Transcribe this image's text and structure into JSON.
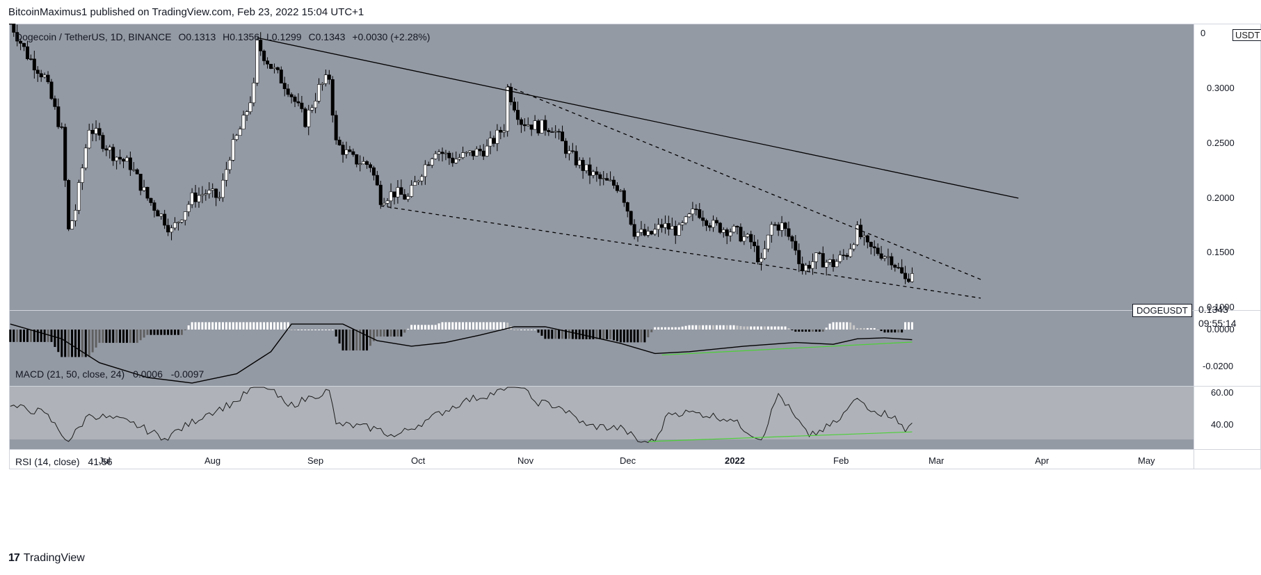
{
  "header": {
    "publisher_line": "BitcoinMaximus1 published on TradingView.com, Feb 23, 2022 15:04 UTC+1"
  },
  "main_legend": {
    "symbol": "Dogecoin / TetherUS, 1D, BINANCE",
    "open_label": "O",
    "open": "0.1313",
    "high_label": "H",
    "high": "0.1356",
    "low_label": "L",
    "low": "0.1299",
    "close_label": "C",
    "close": "0.1343",
    "change": "+0.0030 (+2.28%)"
  },
  "currency_badge": "USDT",
  "price_axis_ticks": [
    "0.3000",
    "0.2500",
    "0.2000",
    "0.1500",
    "0.1000"
  ],
  "price_axis_top_partial": "0",
  "last_price": {
    "symbol": "DOGEUSDT",
    "value": "0.1343",
    "countdown": "09:55:14"
  },
  "macd": {
    "label": "MACD (21, 50, close, 24)",
    "value1": "0.0006",
    "value2": "-0.0097",
    "ticks": [
      "0.0000",
      "-0.0200"
    ]
  },
  "rsi": {
    "label": "RSI (14, close)",
    "value": "41.56",
    "ticks": [
      "60.00",
      "40.00"
    ]
  },
  "time_axis": [
    "Jul",
    "Aug",
    "Sep",
    "Oct",
    "Nov",
    "Dec",
    "2022",
    "Feb",
    "Mar",
    "Apr",
    "May"
  ],
  "footer": {
    "brand": "TradingView",
    "logo": "17"
  },
  "colors": {
    "panel_bg": "#949aa4",
    "rsi_band_bg": "#afb3b9",
    "candle_up": "#ffffff",
    "candle_down": "#000000",
    "trendline": "#000000",
    "divergence": "#4cd137"
  },
  "chart_data": {
    "type": "candlestick",
    "symbol": "DOGEUSDT",
    "timeframe": "1D",
    "price_range": [
      0.08,
      0.35
    ],
    "price_path": [
      [
        "2021-06-05",
        0.36
      ],
      [
        "2021-06-10",
        0.33
      ],
      [
        "2021-06-15",
        0.31
      ],
      [
        "2021-06-20",
        0.26
      ],
      [
        "2021-06-22",
        0.17
      ],
      [
        "2021-06-24",
        0.19
      ],
      [
        "2021-06-28",
        0.265
      ],
      [
        "2021-07-05",
        0.24
      ],
      [
        "2021-07-10",
        0.23
      ],
      [
        "2021-07-15",
        0.2
      ],
      [
        "2021-07-20",
        0.18
      ],
      [
        "2021-07-22",
        0.17
      ],
      [
        "2021-07-28",
        0.2
      ],
      [
        "2021-08-01",
        0.205
      ],
      [
        "2021-08-05",
        0.2
      ],
      [
        "2021-08-08",
        0.24
      ],
      [
        "2021-08-12",
        0.27
      ],
      [
        "2021-08-15",
        0.3
      ],
      [
        "2021-08-16",
        0.34
      ],
      [
        "2021-08-20",
        0.32
      ],
      [
        "2021-08-25",
        0.3
      ],
      [
        "2021-08-30",
        0.27
      ],
      [
        "2021-09-03",
        0.3
      ],
      [
        "2021-09-06",
        0.31
      ],
      [
        "2021-09-08",
        0.25
      ],
      [
        "2021-09-13",
        0.235
      ],
      [
        "2021-09-18",
        0.23
      ],
      [
        "2021-09-21",
        0.2
      ],
      [
        "2021-09-25",
        0.205
      ],
      [
        "2021-09-29",
        0.2
      ],
      [
        "2021-10-03",
        0.225
      ],
      [
        "2021-10-07",
        0.245
      ],
      [
        "2021-10-12",
        0.235
      ],
      [
        "2021-10-17",
        0.24
      ],
      [
        "2021-10-22",
        0.245
      ],
      [
        "2021-10-27",
        0.265
      ],
      [
        "2021-10-28",
        0.3
      ],
      [
        "2021-11-01",
        0.27
      ],
      [
        "2021-11-06",
        0.265
      ],
      [
        "2021-11-10",
        0.265
      ],
      [
        "2021-11-15",
        0.24
      ],
      [
        "2021-11-20",
        0.225
      ],
      [
        "2021-11-25",
        0.215
      ],
      [
        "2021-11-30",
        0.21
      ],
      [
        "2021-12-04",
        0.17
      ],
      [
        "2021-12-08",
        0.165
      ],
      [
        "2021-12-12",
        0.175
      ],
      [
        "2021-12-17",
        0.17
      ],
      [
        "2021-12-22",
        0.19
      ],
      [
        "2021-12-27",
        0.175
      ],
      [
        "2022-01-02",
        0.17
      ],
      [
        "2022-01-07",
        0.16
      ],
      [
        "2022-01-10",
        0.14
      ],
      [
        "2022-01-13",
        0.175
      ],
      [
        "2022-01-16",
        0.175
      ],
      [
        "2022-01-20",
        0.155
      ],
      [
        "2022-01-22",
        0.135
      ],
      [
        "2022-01-26",
        0.145
      ],
      [
        "2022-01-31",
        0.14
      ],
      [
        "2022-02-04",
        0.15
      ],
      [
        "2022-02-07",
        0.17
      ],
      [
        "2022-02-10",
        0.155
      ],
      [
        "2022-02-14",
        0.15
      ],
      [
        "2022-02-17",
        0.145
      ],
      [
        "2022-02-21",
        0.125
      ],
      [
        "2022-02-23",
        0.1343
      ]
    ],
    "trendlines": [
      {
        "style": "solid",
        "from": [
          "2021-08-16",
          0.346
        ],
        "to": [
          "2022-03-26",
          0.2
        ]
      },
      {
        "style": "dashed",
        "from": [
          "2021-10-28",
          0.302
        ],
        "to": [
          "2022-03-15",
          0.126
        ]
      },
      {
        "style": "dashed",
        "from": [
          "2021-09-21",
          0.193
        ],
        "to": [
          "2022-03-15",
          0.109
        ]
      }
    ],
    "macd": {
      "params": "21, 50, close, 24",
      "ylim": [
        -0.0275,
        0.0018
      ],
      "line": [
        [
          "2021-06-05",
          0.003
        ],
        [
          "2021-06-20",
          -0.005
        ],
        [
          "2021-07-01",
          -0.018
        ],
        [
          "2021-07-15",
          -0.026
        ],
        [
          "2021-07-28",
          -0.029
        ],
        [
          "2021-08-10",
          -0.024
        ],
        [
          "2021-08-20",
          -0.012
        ],
        [
          "2021-08-26",
          0.003
        ],
        [
          "2021-09-10",
          0.003
        ],
        [
          "2021-09-20",
          -0.006
        ],
        [
          "2021-09-30",
          -0.009
        ],
        [
          "2021-10-10",
          -0.007
        ],
        [
          "2021-10-20",
          -0.003
        ],
        [
          "2021-10-30",
          0.0015
        ],
        [
          "2021-11-08",
          0.0015
        ],
        [
          "2021-11-18",
          -0.0025
        ],
        [
          "2021-11-30",
          -0.0075
        ],
        [
          "2021-12-10",
          -0.013
        ],
        [
          "2021-12-20",
          -0.012
        ],
        [
          "2022-01-05",
          -0.009
        ],
        [
          "2022-01-20",
          -0.007
        ],
        [
          "2022-01-31",
          -0.008
        ],
        [
          "2022-02-07",
          -0.005
        ],
        [
          "2022-02-15",
          -0.0045
        ],
        [
          "2022-02-23",
          -0.0055
        ]
      ],
      "divergence": {
        "from": [
          "2021-12-12",
          -0.0138
        ],
        "to": [
          "2022-02-23",
          -0.0068
        ]
      }
    },
    "rsi": {
      "params": "14, close",
      "ylim": [
        24,
        64
      ],
      "band": [
        30,
        70
      ],
      "path": [
        [
          "2021-06-05",
          52
        ],
        [
          "2021-06-15",
          48
        ],
        [
          "2021-06-22",
          30
        ],
        [
          "2021-06-28",
          47
        ],
        [
          "2021-07-10",
          42
        ],
        [
          "2021-07-20",
          32
        ],
        [
          "2021-08-01",
          47
        ],
        [
          "2021-08-10",
          55
        ],
        [
          "2021-08-17",
          68
        ],
        [
          "2021-08-25",
          52
        ],
        [
          "2021-09-01",
          58
        ],
        [
          "2021-09-06",
          62
        ],
        [
          "2021-09-08",
          41
        ],
        [
          "2021-09-20",
          38
        ],
        [
          "2021-09-25",
          33
        ],
        [
          "2021-10-05",
          44
        ],
        [
          "2021-10-15",
          55
        ],
        [
          "2021-10-27",
          62
        ],
        [
          "2021-10-29",
          70
        ],
        [
          "2021-11-05",
          55
        ],
        [
          "2021-11-12",
          52
        ],
        [
          "2021-11-20",
          40
        ],
        [
          "2021-12-01",
          38
        ],
        [
          "2021-12-05",
          30
        ],
        [
          "2021-12-10",
          30
        ],
        [
          "2021-12-14",
          48
        ],
        [
          "2021-12-22",
          48
        ],
        [
          "2022-01-01",
          44
        ],
        [
          "2022-01-10",
          31
        ],
        [
          "2022-01-15",
          60
        ],
        [
          "2022-01-20",
          45
        ],
        [
          "2022-01-24",
          33
        ],
        [
          "2022-02-01",
          42
        ],
        [
          "2022-02-07",
          57
        ],
        [
          "2022-02-12",
          49
        ],
        [
          "2022-02-18",
          46
        ],
        [
          "2022-02-21",
          36
        ],
        [
          "2022-02-23",
          41.56
        ]
      ],
      "divergence": {
        "from": [
          "2021-12-08",
          30
        ],
        "to": [
          "2022-02-23",
          36
        ]
      }
    },
    "x_range": [
      "2021-06-05",
      "2022-05-25"
    ]
  }
}
